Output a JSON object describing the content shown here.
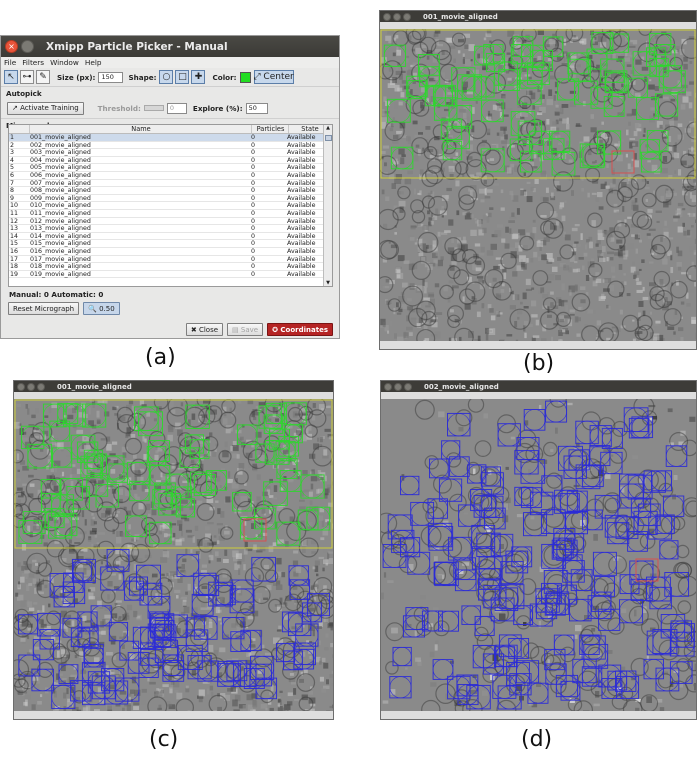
{
  "labels": {
    "a": "(a)",
    "b": "(b)",
    "c": "(c)",
    "d": "(d)"
  },
  "picker": {
    "title": "Xmipp Particle Picker - Manual",
    "menu": [
      "File",
      "Filters",
      "Window",
      "Help"
    ],
    "size_label": "Size (px):",
    "size_value": "150",
    "shape_label": "Shape:",
    "color_label": "Color:",
    "color": "#22dd22",
    "center_label": "Center",
    "autopick_title": "Autopick",
    "activate_training": "Activate Training",
    "threshold_label": "Threshold:",
    "threshold_value": "0",
    "explore_label": "Explore (%):",
    "explore_value": "50",
    "micrographs_title": "Micrographs",
    "columns": [
      "",
      "Name",
      "Particles",
      "State"
    ],
    "rows": [
      [
        "1",
        "001_movie_aligned",
        "0",
        "Available"
      ],
      [
        "2",
        "002_movie_aligned",
        "0",
        "Available"
      ],
      [
        "3",
        "003_movie_aligned",
        "0",
        "Available"
      ],
      [
        "4",
        "004_movie_aligned",
        "0",
        "Available"
      ],
      [
        "5",
        "005_movie_aligned",
        "0",
        "Available"
      ],
      [
        "6",
        "006_movie_aligned",
        "0",
        "Available"
      ],
      [
        "7",
        "007_movie_aligned",
        "0",
        "Available"
      ],
      [
        "8",
        "008_movie_aligned",
        "0",
        "Available"
      ],
      [
        "9",
        "009_movie_aligned",
        "0",
        "Available"
      ],
      [
        "10",
        "010_movie_aligned",
        "0",
        "Available"
      ],
      [
        "11",
        "011_movie_aligned",
        "0",
        "Available"
      ],
      [
        "12",
        "012_movie_aligned",
        "0",
        "Available"
      ],
      [
        "13",
        "013_movie_aligned",
        "0",
        "Available"
      ],
      [
        "14",
        "014_movie_aligned",
        "0",
        "Available"
      ],
      [
        "15",
        "015_movie_aligned",
        "0",
        "Available"
      ],
      [
        "16",
        "016_movie_aligned",
        "0",
        "Available"
      ],
      [
        "17",
        "017_movie_aligned",
        "0",
        "Available"
      ],
      [
        "18",
        "018_movie_aligned",
        "0",
        "Available"
      ],
      [
        "19",
        "019_movie_aligned",
        "0",
        "Available"
      ]
    ],
    "counts": "Manual: 0 Automatic: 0",
    "reset_label": "Reset Micrograph",
    "zoom_value": "0.50",
    "close_label": "Close",
    "save_label": "Save",
    "coordinates_label": "Coordinates",
    "coordinates_color": "#b52424"
  },
  "windows": {
    "b": {
      "title": "001_movie_aligned"
    },
    "c": {
      "title": "001_movie_aligned"
    },
    "d": {
      "title": "002_movie_aligned"
    }
  },
  "colors": {
    "manual_box": "#2ed62e",
    "auto_box": "#2c2cd6",
    "reject_box": "#d65050",
    "region": "#cfcf3a"
  }
}
